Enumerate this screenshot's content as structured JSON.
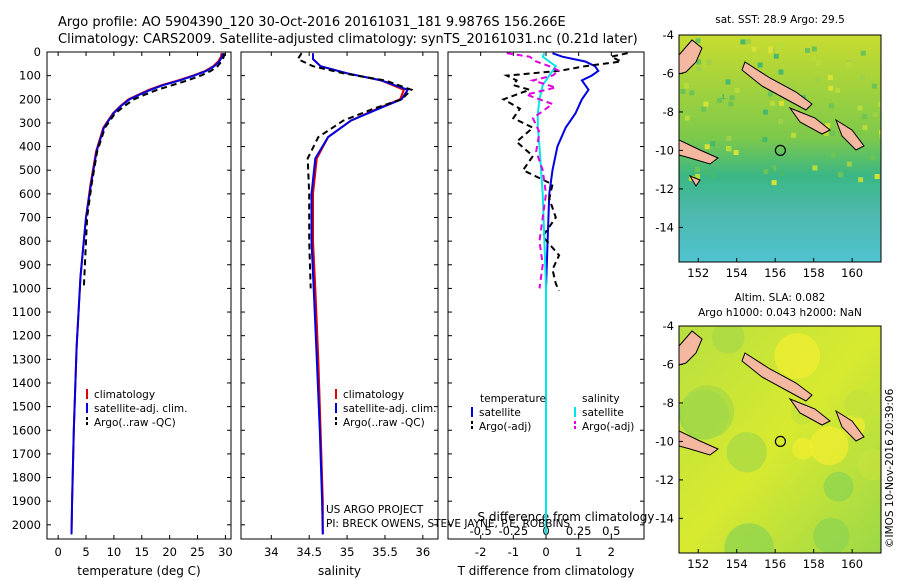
{
  "header": {
    "line1": "Argo profile: AO 5904390_120 30-Oct-2016 20161031_181 9.9876S 156.266E",
    "line2": "Climatology: CARS2009. Satellite-adjusted climatology: synTS_20161031.nc (0.21d later)"
  },
  "footer": {
    "project": "US ARGO PROJECT",
    "pi": "PI: BRECK OWENS, STEVE JAYNE, P.E. ROBBINS",
    "watermark": "©IMOS 10-Nov-2016 20:39:06"
  },
  "colors": {
    "climatology": "#e00000",
    "satellite": "#0000e0",
    "argo": "#000000",
    "sat_sal": "#00e8e8",
    "argo_sal": "#e000e0"
  },
  "chart_data": [
    {
      "type": "line",
      "name": "temperature",
      "xlabel": "temperature (deg C)",
      "ylabel": "",
      "xlim": [
        -2,
        31
      ],
      "ylim": [
        2060,
        0
      ],
      "xticks": [
        0,
        5,
        10,
        15,
        20,
        25,
        30
      ],
      "yticks": [
        0,
        100,
        200,
        300,
        400,
        500,
        600,
        700,
        800,
        900,
        1000,
        1100,
        1200,
        1300,
        1400,
        1500,
        1600,
        1700,
        1800,
        1900,
        2000
      ],
      "legend": [
        "climatology",
        "satellite-adj. clim.",
        "Argo(..raw -QC)"
      ],
      "series": [
        {
          "name": "climatology",
          "color": "#e00000",
          "dash": "",
          "x": [
            29.3,
            29.2,
            28.7,
            27.8,
            26.4,
            24.2,
            21.5,
            18.6,
            16.3,
            14.4,
            12.6,
            11.1,
            9.8,
            8.1,
            6.8,
            5.8,
            5.0,
            4.0,
            3.3,
            2.8,
            2.5,
            2.4
          ],
          "y": [
            5,
            20,
            40,
            60,
            80,
            100,
            120,
            140,
            160,
            180,
            200,
            230,
            260,
            320,
            420,
            560,
            700,
            950,
            1250,
            1600,
            1900,
            2040
          ]
        },
        {
          "name": "satellite-adj. clim.",
          "color": "#0000e0",
          "dash": "",
          "x": [
            29.5,
            29.4,
            28.9,
            28.0,
            26.6,
            24.4,
            21.8,
            18.9,
            16.6,
            14.6,
            12.8,
            11.2,
            9.9,
            8.2,
            6.9,
            5.9,
            5.0,
            4.0,
            3.3,
            2.8,
            2.5,
            2.4
          ],
          "y": [
            5,
            20,
            40,
            60,
            80,
            100,
            120,
            140,
            160,
            180,
            200,
            230,
            260,
            320,
            420,
            560,
            700,
            950,
            1250,
            1600,
            1900,
            2040
          ]
        },
        {
          "name": "Argo(..raw -QC)",
          "color": "#000000",
          "dash": "6,4",
          "x": [
            29.8,
            29.7,
            29.3,
            28.6,
            27.4,
            25.6,
            23.2,
            20.5,
            17.8,
            15.6,
            13.6,
            11.8,
            10.2,
            8.4,
            7.0,
            6.0,
            5.2,
            4.6
          ],
          "y": [
            5,
            20,
            40,
            60,
            80,
            100,
            120,
            140,
            160,
            180,
            200,
            230,
            260,
            320,
            420,
            560,
            700,
            1000
          ]
        }
      ]
    },
    {
      "type": "line",
      "name": "salinity",
      "xlabel": "salinity",
      "ylabel": "",
      "xlim": [
        33.6,
        36.2
      ],
      "ylim": [
        2060,
        0
      ],
      "xticks": [
        34,
        34.5,
        35,
        35.5,
        36
      ],
      "legend": [
        "climatology",
        "satellite-adj. clim.",
        "Argo(..raw -QC)"
      ],
      "series": [
        {
          "name": "climatology",
          "color": "#e00000",
          "dash": "",
          "x": [
            34.55,
            34.55,
            34.65,
            35.0,
            35.45,
            35.75,
            35.7,
            35.4,
            35.05,
            34.75,
            34.6,
            34.55,
            34.55,
            34.58,
            34.62,
            34.65,
            34.68,
            34.68
          ],
          "y": [
            5,
            30,
            60,
            90,
            120,
            160,
            200,
            240,
            290,
            360,
            450,
            600,
            800,
            1000,
            1300,
            1600,
            1900,
            2040
          ]
        },
        {
          "name": "satellite-adj. clim.",
          "color": "#0000e0",
          "dash": "",
          "x": [
            34.55,
            34.55,
            34.65,
            35.0,
            35.45,
            35.8,
            35.72,
            35.42,
            35.05,
            34.75,
            34.58,
            34.53,
            34.53,
            34.56,
            34.6,
            34.64,
            34.67,
            34.68
          ],
          "y": [
            5,
            30,
            60,
            90,
            120,
            160,
            200,
            240,
            290,
            360,
            450,
            600,
            800,
            1000,
            1300,
            1600,
            1900,
            2040
          ]
        },
        {
          "name": "Argo(..raw -QC)",
          "color": "#000000",
          "dash": "6,4",
          "x": [
            34.4,
            34.35,
            34.55,
            34.95,
            35.5,
            35.85,
            35.72,
            35.35,
            34.95,
            34.62,
            34.48,
            34.5,
            34.5,
            34.52
          ],
          "y": [
            5,
            30,
            60,
            90,
            120,
            160,
            200,
            240,
            290,
            360,
            450,
            600,
            800,
            1000
          ]
        }
      ]
    },
    {
      "type": "line",
      "name": "differences",
      "xlabel": "T difference from climatology",
      "xlabel2": "S difference from climatology",
      "xlim": [
        -3,
        3
      ],
      "ylim": [
        2060,
        0
      ],
      "xticks": [
        -2,
        -1,
        0,
        1,
        2
      ],
      "xticks2": [
        "-0.5",
        "-0.25",
        "0",
        "0.25",
        "0.5"
      ],
      "legend": {
        "temperature": "temperature",
        "salinity": "salinity",
        "sat": "satellite",
        "argo": "Argo(-adj)"
      },
      "series": [
        {
          "name": "satellite T",
          "color": "#0000e0",
          "dash": "",
          "x": [
            0.2,
            0.5,
            1.2,
            1.5,
            1.6,
            1.4,
            1.1,
            1.2,
            1.3,
            1.1,
            0.9,
            0.6,
            0.35,
            0.2,
            0.1,
            0.05,
            0,
            0,
            0,
            0
          ],
          "y": [
            5,
            20,
            40,
            60,
            80,
            100,
            120,
            140,
            160,
            200,
            260,
            320,
            400,
            500,
            600,
            800,
            1000,
            1300,
            1700,
            2040
          ]
        },
        {
          "name": "Argo T",
          "color": "#000000",
          "dash": "6,4",
          "x": [
            2.5,
            2.0,
            2.3,
            1.2,
            0.4,
            -1.2,
            -0.9,
            -1.0,
            -0.5,
            -1.3,
            -0.8,
            -1.0,
            -0.4,
            -0.9,
            -0.4,
            -0.7,
            0.2,
            0.1,
            0.3,
            -0.1,
            0.4,
            0.2,
            0.3,
            0.4
          ],
          "y": [
            5,
            20,
            40,
            60,
            80,
            100,
            120,
            140,
            160,
            200,
            240,
            280,
            320,
            380,
            440,
            500,
            560,
            620,
            700,
            780,
            860,
            920,
            980,
            1010
          ]
        },
        {
          "name": "satellite S",
          "color": "#00e8e8",
          "dash": "",
          "x": [
            -0.05,
            -0.1,
            0.1,
            0.3,
            0.2,
            0.1,
            -0.1,
            -0.2,
            -0.25,
            -0.25,
            -0.2,
            -0.15,
            -0.1,
            -0.05,
            0,
            0,
            0
          ],
          "y": [
            5,
            20,
            40,
            60,
            80,
            100,
            140,
            200,
            260,
            320,
            400,
            500,
            600,
            800,
            1000,
            1400,
            2040
          ]
        },
        {
          "name": "Argo S",
          "color": "#e000e0",
          "dash": "6,4",
          "x": [
            -1.2,
            -0.5,
            -0.3,
            0.1,
            0.4,
            0.2,
            -0.4,
            0.3,
            -0.6,
            0.2,
            -0.4,
            -0.2,
            -0.3,
            -0.1,
            0,
            -0.1,
            -0.2,
            -0.1,
            -0.2
          ],
          "y": [
            5,
            20,
            40,
            60,
            80,
            100,
            120,
            150,
            180,
            220,
            280,
            340,
            420,
            500,
            600,
            700,
            800,
            900,
            1000
          ]
        }
      ]
    },
    {
      "type": "heatmap",
      "name": "sst-map",
      "title": "sat. SST: 28.9 Argo: 29.5",
      "xlim": [
        151,
        161.5
      ],
      "ylim": [
        -15.8,
        -4
      ],
      "xticks": [
        152,
        154,
        156,
        158,
        160
      ],
      "yticks": [
        -4,
        -6,
        -8,
        -10,
        -12,
        -14
      ],
      "marker": {
        "lon": 156.27,
        "lat": -10.0
      }
    },
    {
      "type": "heatmap",
      "name": "sla-map",
      "title": "Altim. SLA: 0.082",
      "subtitle": "Argo h1000: 0.043 h2000: NaN",
      "xlim": [
        151,
        161.5
      ],
      "ylim": [
        -15.8,
        -4
      ],
      "xticks": [
        152,
        154,
        156,
        158,
        160
      ],
      "yticks": [
        -4,
        -6,
        -8,
        -10,
        -12,
        -14
      ],
      "marker": {
        "lon": 156.27,
        "lat": -10.0
      }
    }
  ]
}
